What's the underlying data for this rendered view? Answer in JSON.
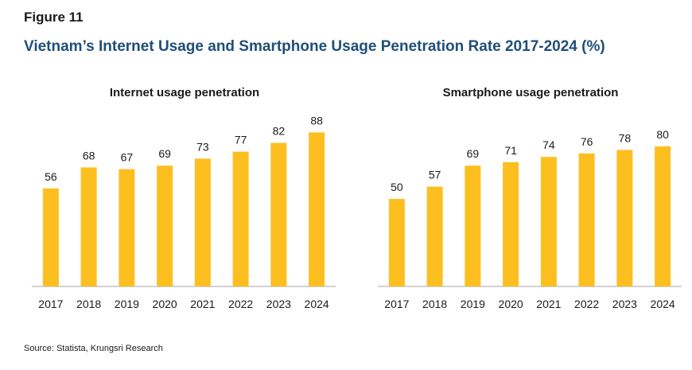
{
  "figure_label": "Figure 11",
  "figure_title": "Vietnam’s Internet Usage and Smartphone Usage Penetration Rate 2017-2024 (%)",
  "source": "Source: Statista, Krungsri Research",
  "chart_data": [
    {
      "type": "bar",
      "title": "Internet usage penetration",
      "categories": [
        "2017",
        "2018",
        "2019",
        "2020",
        "2021",
        "2022",
        "2023",
        "2024"
      ],
      "values": [
        56,
        68,
        67,
        69,
        73,
        77,
        82,
        88
      ],
      "ylim": [
        0,
        100
      ],
      "color": "#FDBF20",
      "grid": false,
      "legend": "none"
    },
    {
      "type": "bar",
      "title": "Smartphone usage penetration",
      "categories": [
        "2017",
        "2018",
        "2019",
        "2020",
        "2021",
        "2022",
        "2023",
        "2024"
      ],
      "values": [
        50,
        57,
        69,
        71,
        74,
        76,
        78,
        80
      ],
      "ylim": [
        0,
        100
      ],
      "color": "#FDBF20",
      "grid": false,
      "legend": "none"
    }
  ]
}
